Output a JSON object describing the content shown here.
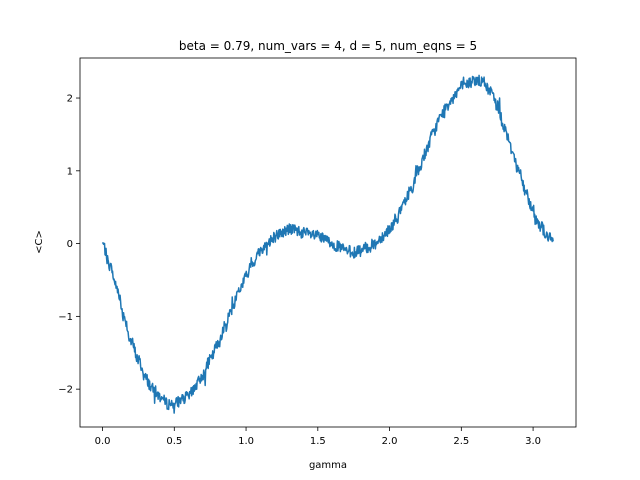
{
  "chart_data": {
    "type": "line",
    "title": "beta = 0.79, num_vars = 4, d = 5, num_eqns = 5",
    "xlabel": "gamma",
    "ylabel": "<C>",
    "xlim": [
      -0.157,
      3.299
    ],
    "ylim": [
      -2.52,
      2.55
    ],
    "xticks": [
      0.0,
      0.5,
      1.0,
      1.5,
      2.0,
      2.5,
      3.0
    ],
    "xtick_labels": [
      "0.0",
      "0.5",
      "1.0",
      "1.5",
      "2.0",
      "2.5",
      "3.0"
    ],
    "yticks": [
      -2,
      -1,
      0,
      1,
      2
    ],
    "ytick_labels": [
      "−2",
      "−1",
      "0",
      "1",
      "2"
    ],
    "grid": false,
    "legend": "none",
    "line_color": "#1f77b4",
    "series": [
      {
        "x": [
          0.0,
          0.05,
          0.1,
          0.15,
          0.2,
          0.25,
          0.3,
          0.35,
          0.4,
          0.45,
          0.5,
          0.55,
          0.6,
          0.65,
          0.7,
          0.75,
          0.8,
          0.85,
          0.9,
          0.95,
          1.0,
          1.05,
          1.1,
          1.15,
          1.2,
          1.25,
          1.3,
          1.35,
          1.4,
          1.45,
          1.5,
          1.55,
          1.6,
          1.65,
          1.7,
          1.75,
          1.8,
          1.85,
          1.9,
          1.95,
          2.0,
          2.05,
          2.1,
          2.15,
          2.2,
          2.25,
          2.3,
          2.35,
          2.4,
          2.45,
          2.5,
          2.55,
          2.6,
          2.65,
          2.7,
          2.75,
          2.8,
          2.85,
          2.9,
          2.95,
          3.0,
          3.05,
          3.1,
          3.14
        ],
        "y": [
          0.0,
          -0.3,
          -0.6,
          -1.0,
          -1.35,
          -1.6,
          -1.85,
          -2.0,
          -2.1,
          -2.2,
          -2.2,
          -2.15,
          -2.1,
          -1.95,
          -1.8,
          -1.6,
          -1.4,
          -1.15,
          -0.9,
          -0.65,
          -0.45,
          -0.25,
          -0.1,
          0.0,
          0.1,
          0.15,
          0.2,
          0.18,
          0.15,
          0.12,
          0.1,
          0.05,
          0.0,
          -0.05,
          -0.1,
          -0.12,
          -0.1,
          -0.05,
          0.0,
          0.1,
          0.2,
          0.35,
          0.55,
          0.75,
          1.0,
          1.25,
          1.5,
          1.72,
          1.9,
          2.05,
          2.15,
          2.2,
          2.25,
          2.22,
          2.1,
          1.9,
          1.6,
          1.3,
          1.0,
          0.7,
          0.45,
          0.25,
          0.1,
          0.03
        ]
      }
    ]
  }
}
